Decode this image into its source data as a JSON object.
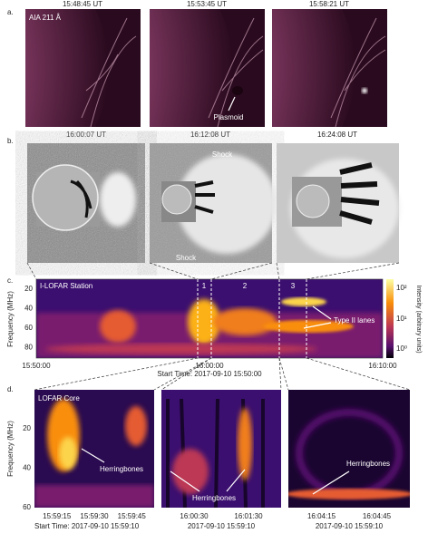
{
  "panel_a": {
    "label": "a.",
    "times": [
      "15:48:45 UT",
      "15:53:45 UT",
      "15:58:21 UT"
    ],
    "instrument": "AIA 211 Å",
    "annotation": "Plasmoid"
  },
  "panel_b": {
    "label": "b.",
    "times": [
      "16:00:07 UT",
      "16:12:08 UT",
      "16:24:08 UT"
    ],
    "annotations": [
      "Shock",
      "Shock"
    ]
  },
  "panel_c": {
    "label": "c.",
    "station": "I-LOFAR Station",
    "regions": [
      "1",
      "2",
      "3"
    ],
    "annotation": "Type II lanes",
    "y_label": "Frequency (MHz)",
    "y_ticks": [
      20,
      40,
      60,
      80
    ],
    "x_ticks": [
      "15:50:00",
      "16:00:00",
      "16:10:00"
    ],
    "x_caption": "Start Time: 2017-09-10 15:50:00",
    "colorbar_label": "Intensity (arbitrary units)",
    "colorbar_ticks": [
      "10²",
      "10¹",
      "10⁰"
    ]
  },
  "panel_d": {
    "label": "d.",
    "station": "LOFAR Core",
    "annotations": [
      "Herringbones",
      "Herringbones",
      "Herringbones"
    ],
    "y_label": "Frequency (MHz)",
    "y_ticks": [
      20,
      40,
      60
    ],
    "x_ticks": [
      [
        "15:59:15",
        "15:59:30",
        "15:59:45"
      ],
      [
        "16:00:30",
        "16:01:30"
      ],
      [
        "16:04:15",
        "16:04:45"
      ]
    ],
    "x_captions": [
      "Start Time: 2017-09-10 15:59:10",
      "2017-09-10 15:59:10",
      "2017-09-10 15:59:10"
    ]
  }
}
